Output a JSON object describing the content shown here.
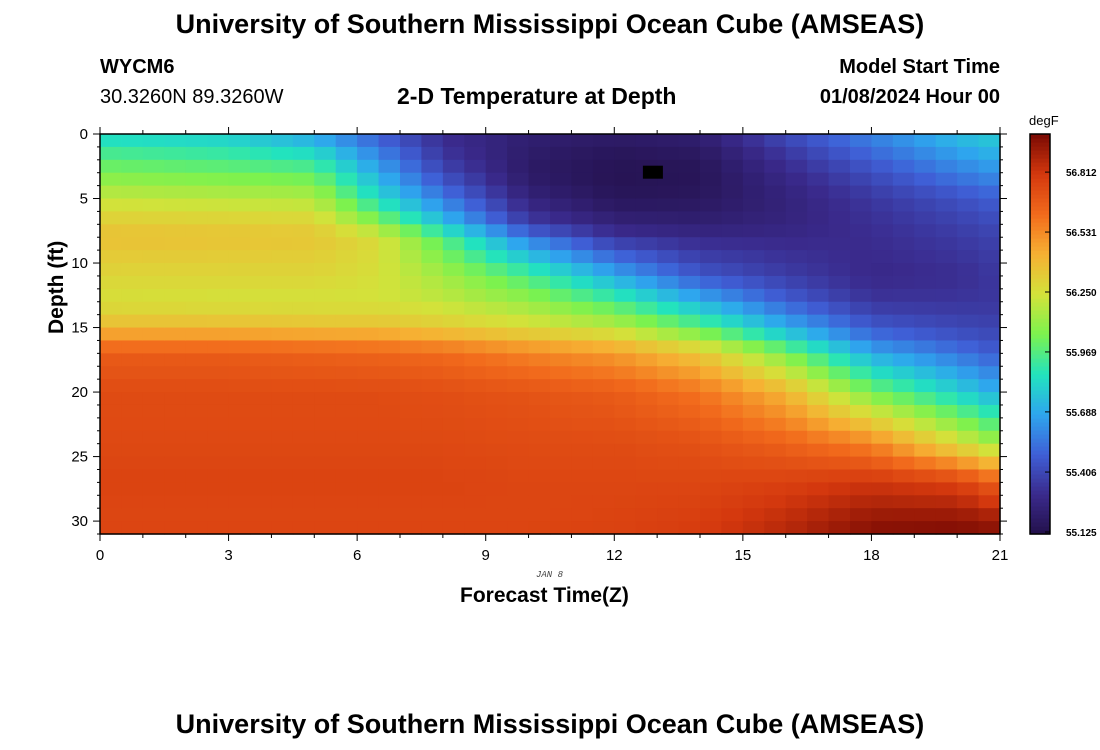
{
  "header": {
    "title": "University of Southern Mississippi Ocean Cube (AMSEAS)",
    "station_id": "WYCM6",
    "coordinates": "30.3260N  89.3260W",
    "subtitle": "2-D Temperature at Depth",
    "model_start_label": "Model Start Time",
    "model_start_value": "01/08/2024 Hour 00"
  },
  "footer": {
    "title": "University of Southern Mississippi Ocean Cube (AMSEAS)"
  },
  "chart_data": {
    "type": "heatmap",
    "title": "2-D Temperature at Depth",
    "xlabel": "Forecast Time(Z)",
    "ylabel": "Depth (ft)",
    "x_date_label": "JAN 8",
    "xlim": [
      0,
      21
    ],
    "ylim": [
      31,
      0
    ],
    "x_ticks": [
      0,
      3,
      6,
      9,
      12,
      15,
      18,
      21
    ],
    "y_ticks": [
      0,
      5,
      10,
      15,
      20,
      25,
      30
    ],
    "colorbar": {
      "unit": "degF",
      "range": [
        55.125,
        57.0
      ],
      "tick_labels": [
        "56.812",
        "56.531",
        "56.250",
        "55.969",
        "55.688",
        "55.406",
        "55.125"
      ],
      "colors": [
        "#23104a",
        "#3a2a8c",
        "#3f5fd6",
        "#2ea6ee",
        "#22e3be",
        "#7cf24e",
        "#d3e23a",
        "#f6b133",
        "#f26b1c",
        "#d4380e",
        "#7a0a03"
      ]
    },
    "grid_resolution": {
      "x_step_hours": 0.5,
      "depth_step_ft": 1
    },
    "min_marker": {
      "x": 12.9,
      "depth": 3.0
    },
    "profiles": [
      {
        "hour": 0,
        "depth": [
          0,
          1,
          3,
          5,
          7,
          8,
          11,
          13,
          15,
          16,
          17,
          20,
          24,
          27,
          30,
          31
        ],
        "temp": [
          55.82,
          55.92,
          56.06,
          56.22,
          56.34,
          56.38,
          56.3,
          56.26,
          56.4,
          56.56,
          56.68,
          56.74,
          56.75,
          56.77,
          56.76,
          56.77
        ]
      },
      {
        "hour": 3,
        "depth": [
          0,
          1,
          3,
          5,
          7,
          8,
          11,
          13,
          15,
          16,
          17,
          20,
          24,
          27,
          30,
          31
        ],
        "temp": [
          55.79,
          55.88,
          56.03,
          56.2,
          56.33,
          56.37,
          56.3,
          56.25,
          56.4,
          56.56,
          56.68,
          56.74,
          56.75,
          56.77,
          56.76,
          56.77
        ]
      },
      {
        "hour": 5,
        "depth": [
          0,
          1,
          3,
          5,
          7,
          8,
          11,
          13,
          15,
          16,
          17,
          20,
          24,
          27,
          30,
          31
        ],
        "temp": [
          55.66,
          55.8,
          56.0,
          56.18,
          56.32,
          56.36,
          56.3,
          56.25,
          56.38,
          56.55,
          56.66,
          56.74,
          56.75,
          56.77,
          56.76,
          56.77
        ]
      },
      {
        "hour": 6.5,
        "depth": [
          0,
          1,
          3,
          5,
          7,
          8,
          11,
          13,
          15,
          16,
          17,
          20,
          24,
          27,
          30,
          31
        ],
        "temp": [
          55.48,
          55.56,
          55.7,
          55.85,
          56.1,
          56.28,
          56.26,
          56.25,
          56.38,
          56.54,
          56.65,
          56.74,
          56.75,
          56.77,
          56.76,
          56.77
        ]
      },
      {
        "hour": 8,
        "depth": [
          0,
          1,
          3,
          5,
          7,
          8,
          11,
          13,
          15,
          16,
          17,
          20,
          24,
          27,
          30,
          31
        ],
        "temp": [
          55.32,
          55.33,
          55.42,
          55.58,
          55.78,
          55.98,
          56.15,
          56.21,
          56.34,
          56.5,
          56.63,
          56.73,
          56.75,
          56.77,
          56.76,
          56.77
        ]
      },
      {
        "hour": 10,
        "depth": [
          0,
          1,
          3,
          5,
          7,
          8,
          11,
          13,
          15,
          16,
          17,
          20,
          24,
          27,
          30,
          31
        ],
        "temp": [
          55.24,
          55.22,
          55.2,
          55.26,
          55.38,
          55.58,
          55.96,
          56.12,
          56.28,
          56.42,
          56.56,
          56.71,
          56.74,
          56.76,
          56.76,
          56.77
        ]
      },
      {
        "hour": 12,
        "depth": [
          0,
          1,
          3,
          5,
          7,
          8,
          11,
          13,
          15,
          16,
          17,
          20,
          24,
          27,
          30,
          31
        ],
        "temp": [
          55.22,
          55.18,
          55.15,
          55.17,
          55.26,
          55.35,
          55.7,
          55.96,
          56.2,
          56.36,
          56.5,
          56.68,
          56.74,
          56.76,
          56.77,
          56.78
        ]
      },
      {
        "hour": 14,
        "depth": [
          0,
          1,
          3,
          5,
          7,
          8,
          11,
          13,
          15,
          16,
          17,
          20,
          24,
          27,
          30,
          31
        ],
        "temp": [
          55.24,
          55.2,
          55.16,
          55.18,
          55.24,
          55.3,
          55.47,
          55.72,
          56.0,
          56.18,
          56.36,
          56.6,
          56.72,
          56.76,
          56.79,
          56.8
        ]
      },
      {
        "hour": 16,
        "depth": [
          0,
          1,
          3,
          5,
          7,
          8,
          11,
          13,
          15,
          16,
          17,
          20,
          24,
          27,
          30,
          31
        ],
        "temp": [
          55.44,
          55.38,
          55.3,
          55.26,
          55.27,
          55.3,
          55.38,
          55.5,
          55.72,
          55.88,
          56.06,
          56.42,
          56.66,
          56.78,
          56.86,
          56.88
        ]
      },
      {
        "hour": 18,
        "depth": [
          0,
          1,
          3,
          5,
          7,
          8,
          11,
          13,
          15,
          16,
          17,
          20,
          24,
          27,
          30,
          31
        ],
        "temp": [
          55.6,
          55.55,
          55.44,
          55.36,
          55.33,
          55.32,
          55.3,
          55.35,
          55.48,
          55.58,
          55.7,
          56.05,
          56.56,
          56.82,
          56.95,
          56.98
        ]
      },
      {
        "hour": 20,
        "depth": [
          0,
          1,
          3,
          5,
          7,
          8,
          11,
          13,
          15,
          16,
          17,
          20,
          24,
          27,
          30,
          31
        ],
        "temp": [
          55.76,
          55.7,
          55.58,
          55.45,
          55.39,
          55.37,
          55.32,
          55.35,
          55.42,
          55.48,
          55.56,
          55.82,
          56.28,
          56.78,
          56.96,
          56.99
        ]
      },
      {
        "hour": 21,
        "depth": [
          0,
          1,
          3,
          5,
          7,
          8,
          11,
          13,
          15,
          16,
          17,
          20,
          24,
          27,
          30,
          31
        ],
        "temp": [
          55.82,
          55.76,
          55.64,
          55.5,
          55.43,
          55.4,
          55.36,
          55.36,
          55.4,
          55.44,
          55.48,
          55.7,
          56.12,
          56.66,
          56.93,
          56.97
        ]
      }
    ]
  }
}
